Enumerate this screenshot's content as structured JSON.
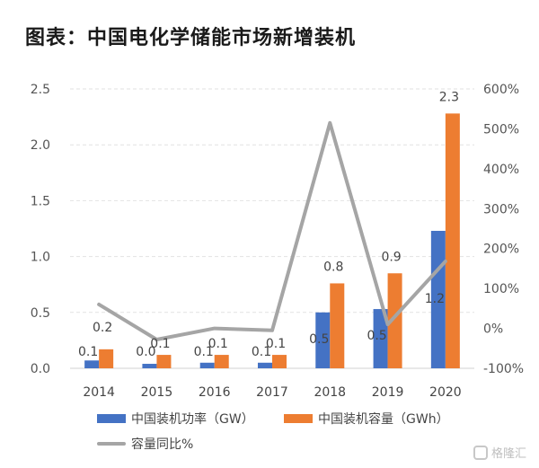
{
  "title": "图表：中国电化学储能市场新增装机",
  "colors": {
    "power": "#4472C4",
    "capacity": "#ED7D31",
    "yoy": "#A5A5A5"
  },
  "watermark": "格隆汇",
  "chart_data": {
    "type": "bar",
    "categories": [
      "2014",
      "2015",
      "2016",
      "2017",
      "2018",
      "2019",
      "2020"
    ],
    "series": [
      {
        "name": "中国装机功率（GW）",
        "type": "bar",
        "axis": "left",
        "values": [
          0.07,
          0.04,
          0.05,
          0.05,
          0.5,
          0.53,
          1.23
        ],
        "labels": [
          "0.1",
          "0.0",
          "0.1",
          "0.1",
          "0.5",
          "0.5",
          "1.2"
        ]
      },
      {
        "name": "中国装机容量（GWh）",
        "type": "bar",
        "axis": "left",
        "values": [
          0.17,
          0.12,
          0.12,
          0.12,
          0.76,
          0.85,
          2.28
        ],
        "labels": [
          "0.2",
          "0.1",
          "0.1",
          "0.1",
          "0.8",
          "0.9",
          "2.3"
        ]
      },
      {
        "name": "容量同比%",
        "type": "line",
        "axis": "right",
        "values": [
          60,
          -28,
          0,
          -5,
          515,
          10,
          168
        ]
      }
    ],
    "ylim": [
      0,
      2.5
    ],
    "yticks": [
      "0.0",
      "0.5",
      "1.0",
      "1.5",
      "2.0",
      "2.5"
    ],
    "y2lim": [
      -100,
      600
    ],
    "y2ticks": [
      "-100%",
      "0%",
      "100%",
      "200%",
      "300%",
      "400%",
      "500%",
      "600%"
    ],
    "grid": true,
    "legend": "bottom"
  }
}
